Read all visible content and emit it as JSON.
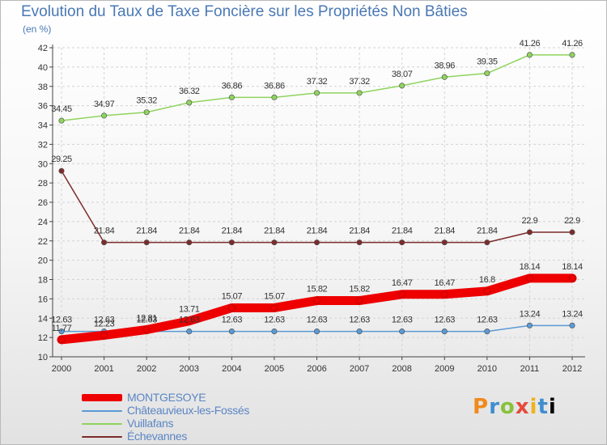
{
  "chart_data": {
    "type": "line",
    "title": "Evolution du Taux de Taxe Foncière sur les Propriétés Non Bâties",
    "ylabel": "(en %)",
    "xlabel": "",
    "categories": [
      "2000",
      "2001",
      "2002",
      "2003",
      "2004",
      "2005",
      "2006",
      "2007",
      "2008",
      "2009",
      "2010",
      "2011",
      "2012"
    ],
    "ylim": [
      10,
      42
    ],
    "yticks": [
      10,
      12,
      14,
      16,
      18,
      20,
      22,
      24,
      26,
      28,
      30,
      32,
      34,
      36,
      38,
      40,
      42
    ],
    "grid": true,
    "legend_position": "bottom-left",
    "series": [
      {
        "name": "MONTGESOYE",
        "color": "#ee0000",
        "values": [
          11.77,
          12.23,
          12.81,
          13.71,
          15.07,
          15.07,
          15.82,
          15.82,
          16.47,
          16.47,
          16.8,
          18.14,
          18.14
        ],
        "labels": [
          "11.77",
          "12.23",
          "12.81",
          "13.71",
          "15.07",
          "15.07",
          "15.82",
          "15.82",
          "16.47",
          "16.47",
          "16.8",
          "18.14",
          "18.14"
        ]
      },
      {
        "name": "Châteauvieux-les-Fossés",
        "color": "#5a9ad6",
        "values": [
          12.63,
          12.63,
          12.63,
          12.63,
          12.63,
          12.63,
          12.63,
          12.63,
          12.63,
          12.63,
          12.63,
          13.24,
          13.24
        ],
        "labels": [
          "12.63",
          "12.63",
          "12.63",
          "12.63",
          "12.63",
          "12.63",
          "12.63",
          "12.63",
          "12.63",
          "12.63",
          "12.63",
          "13.24",
          "13.24"
        ]
      },
      {
        "name": "Vuillafans",
        "color": "#8fd45e",
        "values": [
          34.45,
          34.97,
          35.32,
          36.32,
          36.86,
          36.86,
          37.32,
          37.32,
          38.07,
          38.96,
          39.35,
          41.26,
          41.26
        ],
        "labels": [
          "34.45",
          "34.97",
          "35.32",
          "36.32",
          "36.86",
          "36.86",
          "37.32",
          "37.32",
          "38.07",
          "38.96",
          "39.35",
          "41.26",
          "41.26"
        ]
      },
      {
        "name": "Échevannes",
        "color": "#7d2b2b",
        "values": [
          29.25,
          21.84,
          21.84,
          21.84,
          21.84,
          21.84,
          21.84,
          21.84,
          21.84,
          21.84,
          21.84,
          22.9,
          22.9
        ],
        "labels": [
          "29.25",
          "21.84",
          "21.84",
          "21.84",
          "21.84",
          "21.84",
          "21.84",
          "21.84",
          "21.84",
          "21.84",
          "21.84",
          "22.9",
          "22.9"
        ]
      }
    ]
  },
  "logo": [
    "P",
    "r",
    "o",
    "x",
    "i",
    "t",
    "i"
  ]
}
